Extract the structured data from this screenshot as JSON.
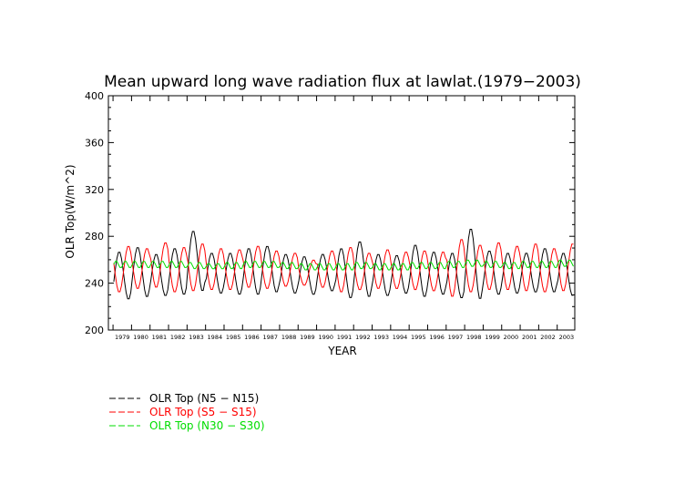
{
  "chart_data": {
    "type": "line",
    "title": "Mean upward long wave radiation flux at lawlat.(1979−2003)",
    "xlabel": "YEAR",
    "ylabel": "OLR Top(W/m^2)",
    "ylim": [
      200,
      400
    ],
    "yticks": [
      200,
      240,
      280,
      320,
      360,
      400
    ],
    "xlim": [
      1978.75,
      2003.95
    ],
    "xticklabels": [
      "1979",
      "1980",
      "1981",
      "1982",
      "1983",
      "1984",
      "1985",
      "1986",
      "1987",
      "1988",
      "1989",
      "1990",
      "1991",
      "1992",
      "1993",
      "1994",
      "1995",
      "1996",
      "1997",
      "1998",
      "1999",
      "2000",
      "2001",
      "2002",
      "2003"
    ],
    "grid": false,
    "legend_placement": "bottom-left",
    "series": [
      {
        "name": "OLR Top (N5 − N15)",
        "color": "#000000",
        "seasonal": "monthly values oscillating annually; peak ~Apr, trough ~Aug",
        "annual_max": [
          267,
          271,
          265,
          270,
          285,
          266,
          266,
          270,
          272,
          265,
          263,
          265,
          270,
          276,
          265,
          264,
          273,
          267,
          266,
          287,
          268,
          266,
          266,
          270,
          266
        ],
        "annual_min": [
          226,
          228,
          229,
          230,
          233,
          231,
          230,
          230,
          232,
          231,
          230,
          233,
          227,
          228,
          229,
          231,
          228,
          230,
          227,
          226,
          230,
          231,
          232,
          232,
          229
        ]
      },
      {
        "name": "OLR Top (S5 − S15)",
        "color": "#ff0000",
        "seasonal": "monthly values oscillating annually, out of phase; peak ~Oct, trough ~Feb",
        "annual_max": [
          272,
          270,
          275,
          271,
          274,
          270,
          269,
          272,
          268,
          266,
          260,
          268,
          271,
          266,
          269,
          267,
          268,
          267,
          278,
          273,
          275,
          272,
          274,
          270,
          274
        ],
        "annual_min": [
          232,
          235,
          236,
          232,
          233,
          234,
          234,
          236,
          235,
          237,
          238,
          236,
          232,
          234,
          235,
          235,
          234,
          233,
          228,
          232,
          234,
          234,
          233,
          232,
          233
        ]
      },
      {
        "name": "OLR Top (N30 − S30)",
        "color": "#00dd00",
        "seasonal": "small semi-annual oscillation around ~255",
        "annual_max": [
          259,
          259,
          259,
          259,
          258,
          257,
          258,
          259,
          259,
          258,
          257,
          257,
          257,
          258,
          257,
          257,
          258,
          258,
          259,
          260,
          259,
          258,
          259,
          259,
          260
        ],
        "annual_min": [
          253,
          253,
          253,
          253,
          252,
          252,
          252,
          253,
          253,
          252,
          251,
          251,
          251,
          252,
          251,
          251,
          252,
          252,
          253,
          254,
          253,
          252,
          253,
          253,
          254
        ]
      }
    ]
  }
}
